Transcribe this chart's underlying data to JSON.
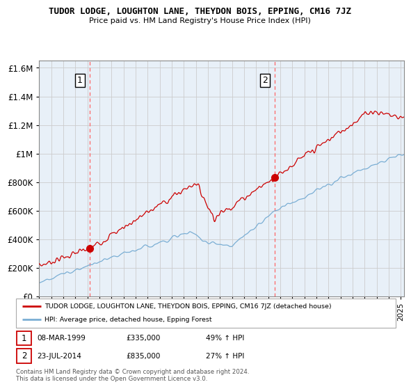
{
  "title": "TUDOR LODGE, LOUGHTON LANE, THEYDON BOIS, EPPING, CM16 7JZ",
  "subtitle": "Price paid vs. HM Land Registry's House Price Index (HPI)",
  "legend_line1": "TUDOR LODGE, LOUGHTON LANE, THEYDON BOIS, EPPING, CM16 7JZ (detached house)",
  "legend_line2": "HPI: Average price, detached house, Epping Forest",
  "transaction1_date": "08-MAR-1999",
  "transaction1_price": "£335,000",
  "transaction1_hpi": "49% ↑ HPI",
  "transaction2_date": "23-JUL-2014",
  "transaction2_price": "£835,000",
  "transaction2_hpi": "27% ↑ HPI",
  "footnote": "Contains HM Land Registry data © Crown copyright and database right 2024.\nThis data is licensed under the Open Government Licence v3.0.",
  "red_color": "#cc0000",
  "blue_color": "#7aaed4",
  "dashed_color": "#ff6666",
  "grid_color": "#cccccc",
  "chart_bg": "#e8f0f8",
  "ylim": [
    0,
    1650000
  ],
  "yticks": [
    0,
    200000,
    400000,
    600000,
    800000,
    1000000,
    1200000,
    1400000,
    1600000
  ],
  "xlim_start": 1995.0,
  "xlim_end": 2025.3,
  "transaction1_x": 1999.18,
  "transaction1_y": 335000,
  "transaction2_x": 2014.55,
  "transaction2_y": 835000
}
